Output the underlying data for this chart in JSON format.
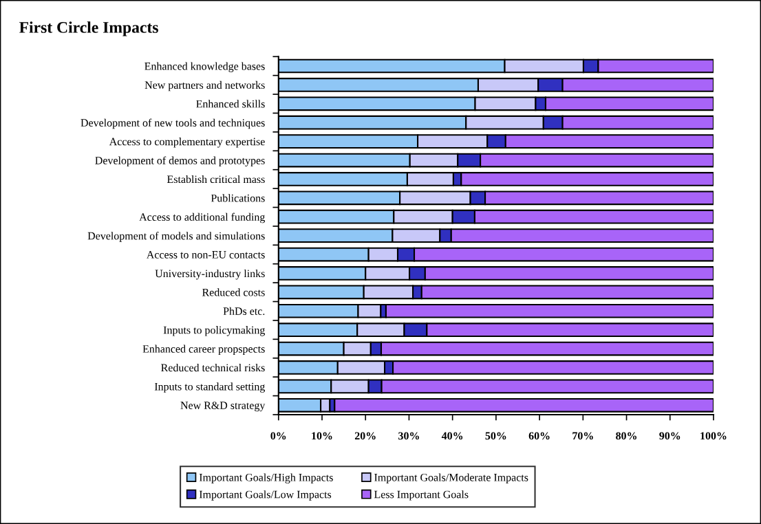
{
  "chart_data": {
    "type": "bar",
    "orientation": "horizontal",
    "stacked": true,
    "title": "First Circle Impacts",
    "categories": [
      "Enhanced knowledge bases",
      "New partners and networks",
      "Enhanced skills",
      "Development of new tools and techniques",
      "Access to complementary expertise",
      "Development of demos and prototypes",
      "Establish critical mass",
      "Publications",
      "Access to additional funding",
      "Development of models and simulations",
      "Access to non-EU contacts",
      "University-industry links",
      "Reduced costs",
      "PhDs etc.",
      "Inputs to policymaking",
      "Enhanced career propspects",
      "Reduced technical risks",
      "Inputs to standard setting",
      "New R&D strategy"
    ],
    "series": [
      {
        "name": "Important Goals/High Impacts",
        "color": "#8fc6f5",
        "values": [
          52.0,
          45.9,
          45.2,
          43.1,
          32.0,
          30.2,
          29.6,
          27.9,
          26.5,
          26.2,
          20.7,
          20.0,
          19.6,
          18.3,
          18.1,
          15.0,
          13.6,
          12.1,
          9.7
        ]
      },
      {
        "name": "Important Goals/Moderate Impacts",
        "color": "#c8c8f8",
        "values": [
          18.1,
          13.8,
          13.9,
          17.8,
          16.0,
          11.0,
          10.6,
          16.2,
          13.5,
          10.9,
          6.7,
          10.1,
          11.3,
          5.2,
          10.8,
          6.2,
          10.8,
          8.6,
          2.1
        ]
      },
      {
        "name": "Important Goals/Low Impacts",
        "color": "#3030c0",
        "values": [
          3.4,
          5.6,
          2.3,
          4.4,
          4.2,
          5.2,
          1.8,
          3.4,
          5.1,
          2.6,
          3.8,
          3.6,
          2.0,
          1.2,
          5.2,
          2.4,
          1.9,
          3.0,
          1.1
        ]
      },
      {
        "name": "Less Important Goals",
        "color": "#a864f8",
        "values": [
          26.5,
          34.7,
          38.6,
          34.7,
          47.8,
          53.6,
          58.0,
          52.5,
          54.9,
          60.3,
          68.8,
          66.3,
          67.1,
          75.3,
          65.9,
          76.4,
          73.7,
          76.3,
          87.1
        ]
      }
    ],
    "xlim": [
      0,
      100
    ],
    "xticks": [
      {
        "value": 0,
        "label": "0%"
      },
      {
        "value": 10,
        "label": "10%"
      },
      {
        "value": 20,
        "label": "20%"
      },
      {
        "value": 30,
        "label": "30%"
      },
      {
        "value": 40,
        "label": "40%"
      },
      {
        "value": 50,
        "label": "50%"
      },
      {
        "value": 60,
        "label": "60%"
      },
      {
        "value": 70,
        "label": "70%"
      },
      {
        "value": 80,
        "label": "80%"
      },
      {
        "value": 90,
        "label": "90%"
      },
      {
        "value": 100,
        "label": "100%"
      }
    ],
    "grid": false,
    "legend": "bottom"
  }
}
